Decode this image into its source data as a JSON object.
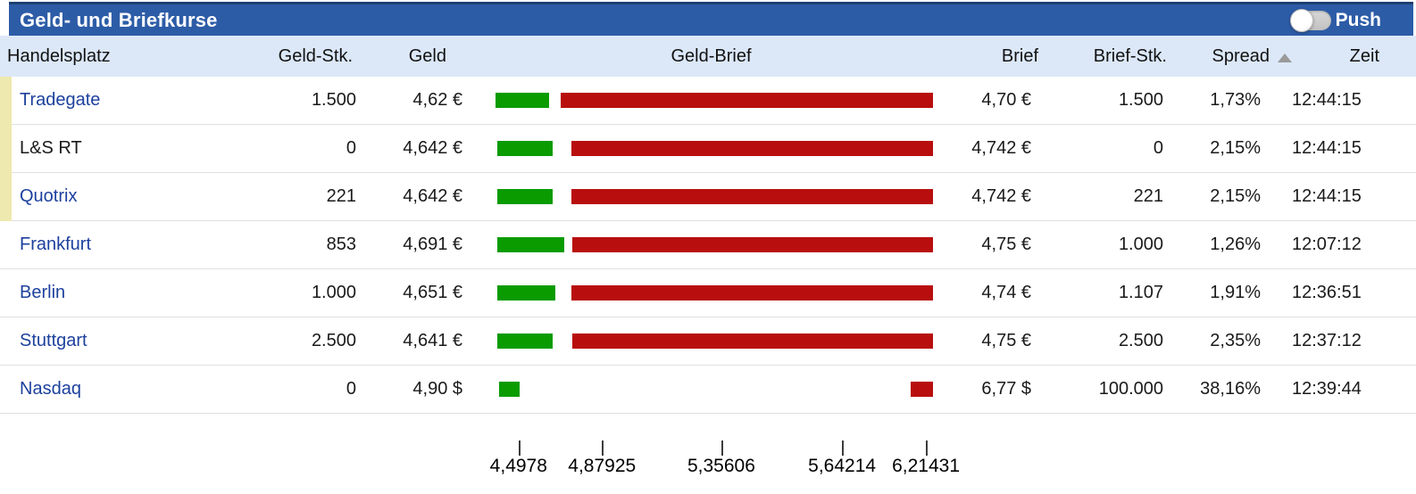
{
  "widget": {
    "title": "Geld- und Briefkurse",
    "push": {
      "label": "Push",
      "state": "off"
    }
  },
  "table": {
    "headers": {
      "venue": "Handelsplatz",
      "bid_size": "Geld-Stk.",
      "bid": "Geld",
      "bid_ask": "Geld-Brief",
      "ask": "Brief",
      "ask_size": "Brief-Stk.",
      "spread": "Spread",
      "time": "Zeit"
    },
    "sort": {
      "column": "spread",
      "direction": "asc"
    },
    "rows": [
      {
        "venue": "Tradegate",
        "link": true,
        "best": true,
        "bid_size": "1.500",
        "bid": "4,62 €",
        "ask": "4,70 €",
        "ask_size": "1.500",
        "spread": "1,73%",
        "time": "12:44:15",
        "bar": {
          "bid_left_pct": 1.4,
          "bid_width_pct": 12.1,
          "ask_left_pct": 16.1,
          "ask_width_pct": 83.9
        }
      },
      {
        "venue": "L&S RT",
        "link": false,
        "best": true,
        "bid_size": "0",
        "bid": "4,642 €",
        "ask": "4,742 €",
        "ask_size": "0",
        "spread": "2,15%",
        "time": "12:44:15",
        "bar": {
          "bid_left_pct": 1.8,
          "bid_width_pct": 12.5,
          "ask_left_pct": 18.5,
          "ask_width_pct": 81.5
        }
      },
      {
        "venue": "Quotrix",
        "link": true,
        "best": true,
        "bid_size": "221",
        "bid": "4,642 €",
        "ask": "4,742 €",
        "ask_size": "221",
        "spread": "2,15%",
        "time": "12:44:15",
        "bar": {
          "bid_left_pct": 1.8,
          "bid_width_pct": 12.5,
          "ask_left_pct": 18.5,
          "ask_width_pct": 81.5
        }
      },
      {
        "venue": "Frankfurt",
        "link": true,
        "best": false,
        "bid_size": "853",
        "bid": "4,691 €",
        "ask": "4,75 €",
        "ask_size": "1.000",
        "spread": "1,26%",
        "time": "12:07:12",
        "bar": {
          "bid_left_pct": 1.8,
          "bid_width_pct": 15.1,
          "ask_left_pct": 18.7,
          "ask_width_pct": 81.3
        }
      },
      {
        "venue": "Berlin",
        "link": true,
        "best": false,
        "bid_size": "1.000",
        "bid": "4,651 €",
        "ask": "4,74 €",
        "ask_size": "1.107",
        "spread": "1,91%",
        "time": "12:36:51",
        "bar": {
          "bid_left_pct": 1.8,
          "bid_width_pct": 13.1,
          "ask_left_pct": 18.5,
          "ask_width_pct": 81.5
        }
      },
      {
        "venue": "Stuttgart",
        "link": true,
        "best": false,
        "bid_size": "2.500",
        "bid": "4,641 €",
        "ask": "4,75 €",
        "ask_size": "2.500",
        "spread": "2,35%",
        "time": "12:37:12",
        "bar": {
          "bid_left_pct": 1.8,
          "bid_width_pct": 12.5,
          "ask_left_pct": 18.7,
          "ask_width_pct": 81.3
        }
      },
      {
        "venue": "Nasdaq",
        "link": true,
        "best": false,
        "bid_size": "0",
        "bid": "4,90 $",
        "ask": "6,77 $",
        "ask_size": "100.000",
        "spread": "38,16%",
        "time": "12:39:44",
        "bar": {
          "bid_left_pct": 2.2,
          "bid_width_pct": 4.6,
          "ask_left_pct": 95.0,
          "ask_width_pct": 5.0
        }
      }
    ]
  },
  "axis": {
    "ticks": [
      {
        "label": "4,4978",
        "pos_pct": 6.6
      },
      {
        "label": "4,87925",
        "pos_pct": 25.4
      },
      {
        "label": "5,35606",
        "pos_pct": 52.3
      },
      {
        "label": "5,64214",
        "pos_pct": 79.5
      },
      {
        "label": "6,21431",
        "pos_pct": 98.4
      }
    ]
  },
  "colors": {
    "titlebar_bg": "#2d5ca7",
    "titlebar_border": "#1e4071",
    "header_bg": "#dce8f8",
    "bid_bar": "#099b00",
    "ask_bar": "#b80e0e",
    "best_marker": "#eee9ae",
    "link": "#1d409d"
  }
}
